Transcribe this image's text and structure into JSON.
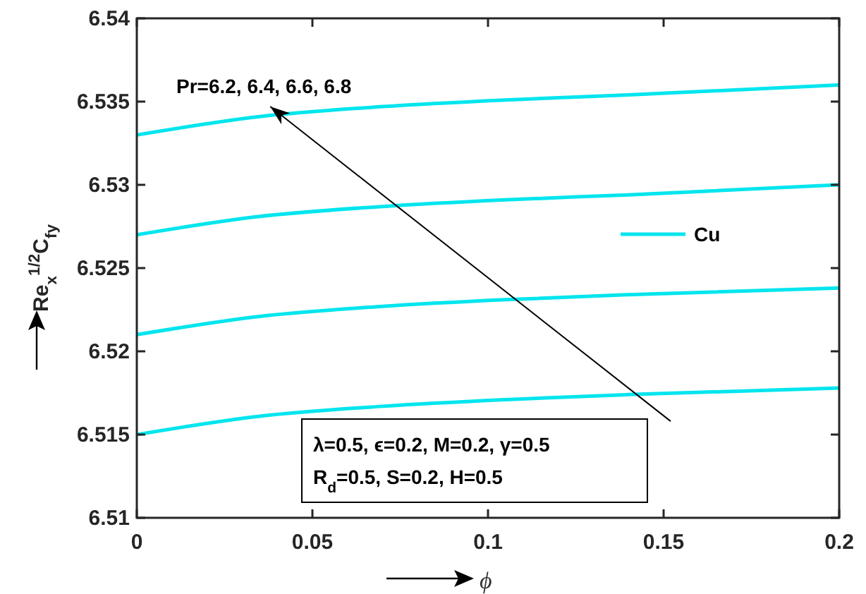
{
  "chart_data": {
    "type": "line",
    "xlabel": "ϕ",
    "ylabel": "Re$_{x}$$^{1/2}$C$_{fy}$",
    "x": [
      0,
      0.035,
      0.07,
      0.105,
      0.14,
      0.2
    ],
    "series": [
      {
        "name": "Cu",
        "color": "#00e5ee",
        "values": [
          6.533,
          6.5341,
          6.5347,
          6.5351,
          6.5354,
          6.536
        ]
      },
      {
        "color": "#00e5ee",
        "values": [
          6.527,
          6.5281,
          6.5287,
          6.5291,
          6.5294,
          6.53
        ]
      },
      {
        "color": "#00e5ee",
        "values": [
          6.521,
          6.5221,
          6.5227,
          6.5231,
          6.5234,
          6.5238
        ]
      },
      {
        "color": "#00e5ee",
        "values": [
          6.515,
          6.5161,
          6.5167,
          6.5171,
          6.5174,
          6.5178
        ]
      }
    ],
    "xlim": [
      0,
      0.2
    ],
    "xticks": [
      0,
      0.05,
      0.1,
      0.15,
      0.2
    ],
    "ylim": [
      6.51,
      6.54
    ],
    "yticks": [
      6.51,
      6.515,
      6.52,
      6.525,
      6.53,
      6.535,
      6.54
    ],
    "grid": false,
    "legend": "right",
    "marker": "none",
    "line_style": "solid",
    "annotations": [
      "Pr=6.2, 6.4, 6.6, 6.8",
      "λ=0.5, ϵ=0.2, M=0.2, γ=0.5",
      "R$_{d}$=0.5, S=0.2, H=0.5"
    ]
  }
}
